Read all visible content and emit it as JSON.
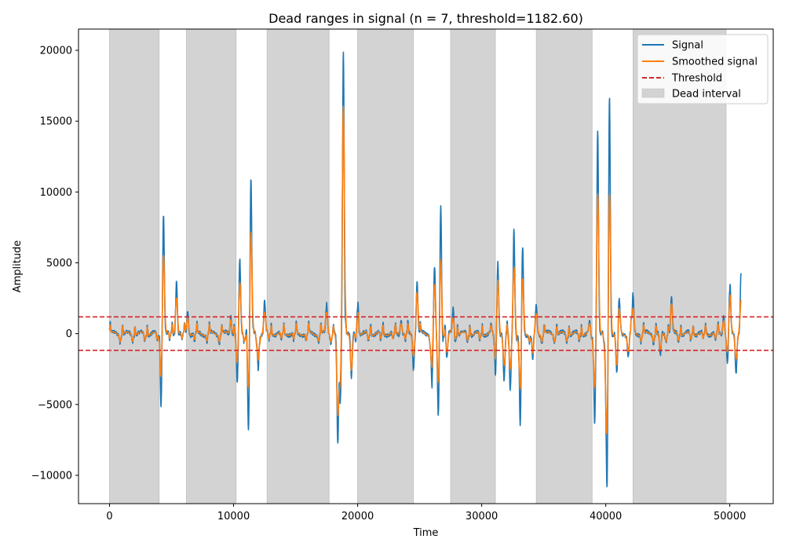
{
  "chart_data": {
    "type": "line",
    "title": "Dead ranges in signal (n = 7, threshold=1182.60)",
    "xlabel": "Time",
    "ylabel": "Amplitude",
    "xlim": [
      -2500,
      53500
    ],
    "ylim": [
      -12000,
      21500
    ],
    "xticks": [
      0,
      10000,
      20000,
      30000,
      40000,
      50000
    ],
    "xtick_labels": [
      "0",
      "10000",
      "20000",
      "30000",
      "40000",
      "50000"
    ],
    "yticks": [
      -10000,
      -5000,
      0,
      5000,
      10000,
      15000,
      20000
    ],
    "ytick_labels": [
      "−10000",
      "−5000",
      "0",
      "5000",
      "10000",
      "15000",
      "20000"
    ],
    "threshold": 1182.6,
    "threshold_lines": [
      1182.6,
      -1182.6
    ],
    "dead_intervals": [
      [
        0,
        4000
      ],
      [
        6200,
        10200
      ],
      [
        12700,
        17700
      ],
      [
        20000,
        24500
      ],
      [
        27500,
        31100
      ],
      [
        34400,
        38900
      ],
      [
        42200,
        49700
      ]
    ],
    "spikes": [
      {
        "x": 4350,
        "v": 8400,
        "s": 5700
      },
      {
        "x": 4150,
        "v": -5100,
        "s": -3300
      },
      {
        "x": 5400,
        "v": 3700,
        "s": 2500
      },
      {
        "x": 6300,
        "v": 1500,
        "s": 1100
      },
      {
        "x": 9800,
        "v": 1200,
        "s": 900
      },
      {
        "x": 10300,
        "v": -3400,
        "s": -2200
      },
      {
        "x": 10500,
        "v": 5300,
        "s": 3700
      },
      {
        "x": 11200,
        "v": -6800,
        "s": -4100
      },
      {
        "x": 11400,
        "v": 11100,
        "s": 7400
      },
      {
        "x": 12000,
        "v": -2500,
        "s": -1700
      },
      {
        "x": 12500,
        "v": 2400,
        "s": 1500
      },
      {
        "x": 17500,
        "v": 2100,
        "s": 1500
      },
      {
        "x": 18400,
        "v": -7800,
        "s": -5600
      },
      {
        "x": 18600,
        "v": -4800,
        "s": -3300
      },
      {
        "x": 18850,
        "v": 19900,
        "s": 16100
      },
      {
        "x": 19500,
        "v": -3100,
        "s": -2600
      },
      {
        "x": 20000,
        "v": 2000,
        "s": 1300
      },
      {
        "x": 23500,
        "v": 900,
        "s": 700
      },
      {
        "x": 24500,
        "v": -2500,
        "s": -1600
      },
      {
        "x": 24800,
        "v": 3700,
        "s": 2900
      },
      {
        "x": 26000,
        "v": -3500,
        "s": -2300
      },
      {
        "x": 26200,
        "v": 4800,
        "s": 3600
      },
      {
        "x": 26500,
        "v": -5800,
        "s": -3700
      },
      {
        "x": 26700,
        "v": 9000,
        "s": 5400
      },
      {
        "x": 27200,
        "v": -1700,
        "s": -1300
      },
      {
        "x": 27700,
        "v": 1800,
        "s": 1100
      },
      {
        "x": 30800,
        "v": 700,
        "s": 500
      },
      {
        "x": 31100,
        "v": -3000,
        "s": -2000
      },
      {
        "x": 31300,
        "v": 5000,
        "s": 3900
      },
      {
        "x": 31800,
        "v": -3300,
        "s": -2200
      },
      {
        "x": 32300,
        "v": -4000,
        "s": -2500
      },
      {
        "x": 32600,
        "v": 7300,
        "s": 4700
      },
      {
        "x": 33100,
        "v": -6600,
        "s": -4100
      },
      {
        "x": 33300,
        "v": 6200,
        "s": 4100
      },
      {
        "x": 34100,
        "v": -1800,
        "s": -1300
      },
      {
        "x": 34400,
        "v": 2100,
        "s": 1400
      },
      {
        "x": 38700,
        "v": 900,
        "s": 700
      },
      {
        "x": 39100,
        "v": -6300,
        "s": -3900
      },
      {
        "x": 39350,
        "v": 14400,
        "s": 9900
      },
      {
        "x": 40000,
        "v": -1700,
        "s": -1200
      },
      {
        "x": 40100,
        "v": -10400,
        "s": -6800
      },
      {
        "x": 40300,
        "v": 16700,
        "s": 10200
      },
      {
        "x": 40900,
        "v": -2700,
        "s": -2200
      },
      {
        "x": 41100,
        "v": 2400,
        "s": 1800
      },
      {
        "x": 41800,
        "v": -1600,
        "s": -1200
      },
      {
        "x": 42200,
        "v": 2800,
        "s": 1800
      },
      {
        "x": 44400,
        "v": -1500,
        "s": -1100
      },
      {
        "x": 45300,
        "v": 2600,
        "s": 2100
      },
      {
        "x": 49500,
        "v": 1200,
        "s": 900
      },
      {
        "x": 49800,
        "v": -2000,
        "s": -1400
      },
      {
        "x": 50000,
        "v": 3400,
        "s": 2600
      },
      {
        "x": 50500,
        "v": -2900,
        "s": -1800
      },
      {
        "x": 50900,
        "v": 4300,
        "s": 2400
      }
    ],
    "baseline_range": [
      -1300,
      900
    ],
    "x_range": [
      0,
      50900
    ],
    "series": [
      {
        "name": "Signal",
        "color": "#1f77b4"
      },
      {
        "name": "Smoothed signal",
        "color": "#ff7f0e"
      }
    ],
    "threshold_color": "#d62728",
    "threshold_label": "Threshold",
    "dead_label": "Dead interval",
    "dead_color": "#d3d3d3",
    "legend_position": "top-right",
    "grid": false
  }
}
